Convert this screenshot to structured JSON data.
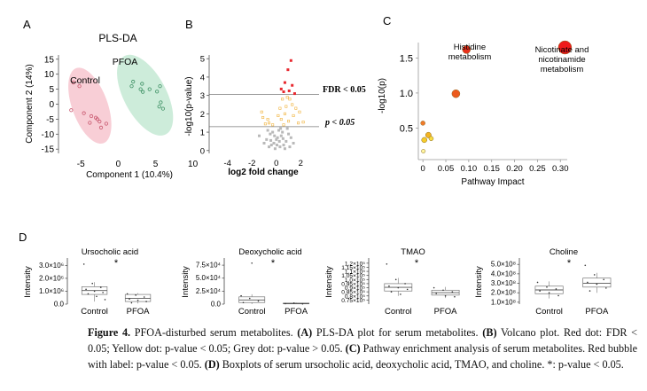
{
  "panels": {
    "a": "A",
    "b": "B",
    "c": "C",
    "d": "D"
  },
  "caption": {
    "label": "Figure 4.",
    "title": "PFOA-disturbed serum metabolites.",
    "a_key": "(A)",
    "a_text": "PLS-DA plot for serum metabolites.",
    "b_key": "(B)",
    "b_text": "Volcano plot. Red dot: FDR < 0.05; Yellow dot: p-value < 0.05; Grey dot: p-value > 0.05.",
    "c_key": "(C)",
    "c_text": "Pathway enrichment analysis of serum metabolites. Red bubble with label: p-value < 0.05.",
    "d_key": "(D)",
    "d_text": "Boxplots of serum ursocholic acid, deoxycholic acid, TMAO, and choline. *: p-value < 0.05."
  },
  "colors": {
    "control_fill": "#f7c6cf",
    "control_point": "#c8576e",
    "pfoa_fill": "#c8ead6",
    "pfoa_point": "#3b8f62",
    "red": "#e8282f",
    "yellow": "#f0b23a",
    "grey": "#b9b9b9",
    "line": "#7a7a7a"
  },
  "chart_data": [
    {
      "id": "pls",
      "type": "scatter",
      "title": "PLS-DA",
      "xlabel": "Component 1 (10.4%)",
      "ylabel": "Component 2 (14%)",
      "xlim": [
        -8,
        11
      ],
      "ylim": [
        -17,
        17
      ],
      "xticks": [
        -5,
        0,
        5,
        10
      ],
      "yticks": [
        -15,
        -10,
        -5,
        0,
        5,
        10,
        15
      ],
      "series": [
        {
          "name": "Control",
          "points": [
            [
              -6,
              7.2
            ],
            [
              -5.2,
              6
            ],
            [
              -6.3,
              -2
            ],
            [
              -4.6,
              -3
            ],
            [
              -3.6,
              -4
            ],
            [
              -3,
              -4.5
            ],
            [
              -2.8,
              -5
            ],
            [
              -2.5,
              -5.8
            ],
            [
              -3.8,
              -6.2
            ],
            [
              -2.3,
              -7.8
            ],
            [
              -1.6,
              -6.5
            ]
          ]
        },
        {
          "name": "PFOA",
          "points": [
            [
              2,
              7.5
            ],
            [
              3.2,
              6.8
            ],
            [
              1.8,
              6
            ],
            [
              4.2,
              5
            ],
            [
              3,
              5
            ],
            [
              5.6,
              6
            ],
            [
              5.2,
              4.2
            ],
            [
              3.3,
              4.1
            ],
            [
              5.5,
              -0.8
            ],
            [
              6,
              -1.5
            ],
            [
              5.7,
              0.6
            ]
          ]
        }
      ]
    },
    {
      "id": "volcano",
      "type": "scatter",
      "xlabel": "log2 fold change",
      "ylabel": "-log10(p-value)",
      "xlim": [
        -5.5,
        3.5
      ],
      "ylim": [
        -0.3,
        5.3
      ],
      "xticks": [
        -4,
        -2,
        0,
        2
      ],
      "yticks": [
        0,
        1,
        2,
        3,
        4,
        5
      ],
      "thresholds": [
        {
          "label": "FDR < 0.05",
          "y": 3.05
        },
        {
          "label": "p < 0.05",
          "y": 1.3
        }
      ],
      "series": [
        {
          "name": "FDR < 0.05",
          "points": [
            [
              0.95,
              4.4
            ],
            [
              0.7,
              3.7
            ],
            [
              1.3,
              3.55
            ],
            [
              0.4,
              3.35
            ],
            [
              1.05,
              3.25
            ],
            [
              0.6,
              3.2
            ],
            [
              1.5,
              3.1
            ],
            [
              1.2,
              4.9
            ]
          ]
        },
        {
          "name": "p < 0.05",
          "points": [
            [
              -1.2,
              2.1
            ],
            [
              -1.1,
              1.8
            ],
            [
              -0.6,
              1.5
            ],
            [
              -0.3,
              1.4
            ],
            [
              -0.7,
              1.7
            ],
            [
              0.3,
              2.3
            ],
            [
              0.5,
              2.8
            ],
            [
              0.9,
              2.9
            ],
            [
              1.3,
              2.5
            ],
            [
              0.7,
              2
            ],
            [
              1.6,
              2.3
            ],
            [
              1,
              1.6
            ],
            [
              1.8,
              1.5
            ],
            [
              1.4,
              1.9
            ],
            [
              0.4,
              1.7
            ],
            [
              2.2,
              1.55
            ],
            [
              0.8,
              2.4
            ],
            [
              0.15,
              1.9
            ],
            [
              1.1,
              2.8
            ],
            [
              -0.9,
              1.45
            ],
            [
              0.6,
              1.4
            ],
            [
              1.9,
              2.1
            ]
          ]
        },
        {
          "name": "p > 0.05",
          "points": [
            [
              -0.5,
              0.9
            ],
            [
              -0.2,
              0.4
            ],
            [
              0.1,
              0.7
            ],
            [
              0.3,
              0.2
            ],
            [
              0.5,
              1.0
            ],
            [
              -0.8,
              0.6
            ],
            [
              0.8,
              0.5
            ],
            [
              1.0,
              0.9
            ],
            [
              -0.1,
              0.1
            ],
            [
              0.2,
              1.1
            ],
            [
              0.6,
              0.3
            ],
            [
              -0.4,
              0.3
            ],
            [
              1.2,
              0.7
            ],
            [
              -1.0,
              0.4
            ],
            [
              0.0,
              0.6
            ],
            [
              0.4,
              0.8
            ],
            [
              -0.6,
              0.2
            ],
            [
              0.9,
              1.2
            ],
            [
              -0.3,
              1.0
            ],
            [
              0.7,
              0.1
            ],
            [
              1.4,
              0.4
            ],
            [
              -1.4,
              0.8
            ],
            [
              0.25,
              0.5
            ],
            [
              -0.15,
              0.8
            ],
            [
              0.55,
              0.65
            ],
            [
              0.05,
              0.3
            ],
            [
              -0.7,
              1.1
            ],
            [
              1.1,
              0.2
            ],
            [
              0.35,
              1.2
            ],
            [
              -0.45,
              0.55
            ]
          ]
        }
      ]
    },
    {
      "id": "pathway",
      "type": "scatter",
      "xlabel": "Pathway Impact",
      "ylabel": "-log10(p)",
      "xlim": [
        -0.01,
        0.315
      ],
      "ylim": [
        0.05,
        1.72
      ],
      "xticks": [
        0,
        0.05,
        0.1,
        0.15,
        0.2,
        0.25,
        0.3
      ],
      "xtick_labels": [
        "0",
        "0.05",
        "0.10",
        "0.15",
        "0.20",
        "0.25",
        "0.30"
      ],
      "yticks": [
        0.5,
        1.0,
        1.5
      ],
      "ytick_labels": [
        "0.5",
        "1.0",
        "1.5"
      ],
      "points": [
        {
          "x": 0.31,
          "y": 1.65,
          "size": 7.5,
          "color": "#ef1b1b",
          "label1": "Nicotinate and",
          "label2": "nicotinamide",
          "label3": "metabolism"
        },
        {
          "x": 0.095,
          "y": 1.62,
          "size": 4.5,
          "color": "#e8301c",
          "label1": "Histidine",
          "label2": "metabolism"
        },
        {
          "x": 0.072,
          "y": 0.99,
          "size": 4.5,
          "color": "#ec5a1d"
        },
        {
          "x": 0.0,
          "y": 0.57,
          "size": 2.5,
          "color": "#f07a2a"
        },
        {
          "x": 0.012,
          "y": 0.4,
          "size": 3.2,
          "color": "#f4b422"
        },
        {
          "x": 0.003,
          "y": 0.33,
          "size": 3,
          "color": "#f6cc2a"
        },
        {
          "x": 0.018,
          "y": 0.35,
          "size": 2.5,
          "color": "#f8dd42"
        },
        {
          "x": 0.001,
          "y": 0.17,
          "size": 2.2,
          "color": "#fff6a0"
        }
      ]
    },
    {
      "id": "box-ursocholic",
      "type": "box",
      "title": "Ursocholic acid",
      "ylabel": "Intensity",
      "categories": [
        "Control",
        "PFOA"
      ],
      "ylim": [
        0,
        3300000.0
      ],
      "yticks": [
        0,
        1000000.0,
        2000000.0,
        3000000.0
      ],
      "ytick_labels": [
        "0.0",
        "1.0×10⁶",
        "2.0×10⁶",
        "3.0×10⁶"
      ],
      "significance": "*",
      "boxes": [
        {
          "min": 200000.0,
          "q1": 750000.0,
          "median": 1050000.0,
          "q3": 1350000.0,
          "max": 1700000.0,
          "points": [
            3100000.0,
            1600000.0,
            1300000.0,
            1150000.0,
            1000000.0,
            900000.0,
            800000.0,
            600000.0,
            350000.0
          ]
        },
        {
          "min": 50000.0,
          "q1": 200000.0,
          "median": 450000.0,
          "q3": 750000.0,
          "max": 850000.0,
          "points": [
            800000.0,
            700000.0,
            550000.0,
            400000.0,
            300000.0,
            200000.0,
            100000.0
          ]
        }
      ]
    },
    {
      "id": "box-deoxycholic",
      "type": "box",
      "title": "Deoxycholic acid",
      "categories": [
        "Control",
        "PFOA"
      ],
      "ylim": [
        0,
        82000.0
      ],
      "yticks": [
        0,
        25000.0,
        50000.0,
        75000.0
      ],
      "ytick_labels": [
        "0.0",
        "2.5×10⁴",
        "5.0×10⁴",
        "7.5×10⁴"
      ],
      "significance": "*",
      "boxes": [
        {
          "min": 0.0,
          "q1": 3000.0,
          "median": 8000.0,
          "q3": 14000.0,
          "max": 19000.0,
          "points": [
            16000.0,
            11000.0,
            6000.0,
            3000.0,
            79000.0
          ]
        },
        {
          "min": 0.0,
          "q1": 500.0,
          "median": 1000.0,
          "q3": 2000.0,
          "max": 3000.0,
          "points": [
            1000.0,
            2000.0,
            500.0
          ]
        }
      ]
    },
    {
      "id": "box-tmao",
      "type": "box",
      "title": "TMAO",
      "categories": [
        "Control",
        "PFOA"
      ],
      "ylim": [
        70000.0,
        122000.0
      ],
      "yticks": [
        75000.0,
        80000.0,
        85000.0,
        90000.0,
        95000.0,
        100000.0,
        105000.0,
        110000.0,
        115000.0,
        120000.0
      ],
      "ytick_labels": [
        "0.75×10⁵",
        "0.8×10⁵",
        "0.85×10⁵",
        "0.9×10⁵",
        "0.95×10⁵",
        "1.0×10⁵",
        "1.05×10⁵",
        "1.1×10⁵",
        "1.15×10⁵",
        "1.2×10⁵"
      ],
      "significance": "*",
      "boxes": [
        {
          "min": 80000.0,
          "q1": 86000.0,
          "median": 90500.0,
          "q3": 95000.0,
          "max": 102000.0,
          "points": [
            119000.0,
            100000.0,
            95000.0,
            92000.0,
            90000.0,
            88000.0,
            85000.0,
            82000.0
          ]
        },
        {
          "min": 77500.0,
          "q1": 81000.0,
          "median": 84000.0,
          "q3": 87000.0,
          "max": 91000.0,
          "points": [
            90000.0,
            87000.0,
            85000.0,
            83000.0,
            80000.0,
            79000.0
          ]
        }
      ]
    },
    {
      "id": "box-choline",
      "type": "box",
      "title": "Choline",
      "categories": [
        "Control",
        "PFOA"
      ],
      "ylim": [
        80000000.0,
        530000000.0
      ],
      "yticks": [
        100000000.0,
        200000000.0,
        300000000.0,
        400000000.0,
        500000000.0
      ],
      "ytick_labels": [
        "1.0×10⁸",
        "2.0×10⁸",
        "3.0×10⁸",
        "4.0×10⁸",
        "5.0×10⁸"
      ],
      "significance": "*",
      "boxes": [
        {
          "min": 140000000.0,
          "q1": 190000000.0,
          "median": 230000000.0,
          "q3": 270000000.0,
          "max": 320000000.0,
          "points": [
            310000000.0,
            260000000.0,
            240000000.0,
            220000000.0,
            200000000.0,
            170000000.0
          ]
        },
        {
          "min": 200000000.0,
          "q1": 260000000.0,
          "median": 300000000.0,
          "q3": 355000000.0,
          "max": 410000000.0,
          "points": [
            490000000.0,
            390000000.0,
            340000000.0,
            310000000.0,
            290000000.0,
            250000000.0,
            220000000.0
          ]
        }
      ]
    }
  ]
}
